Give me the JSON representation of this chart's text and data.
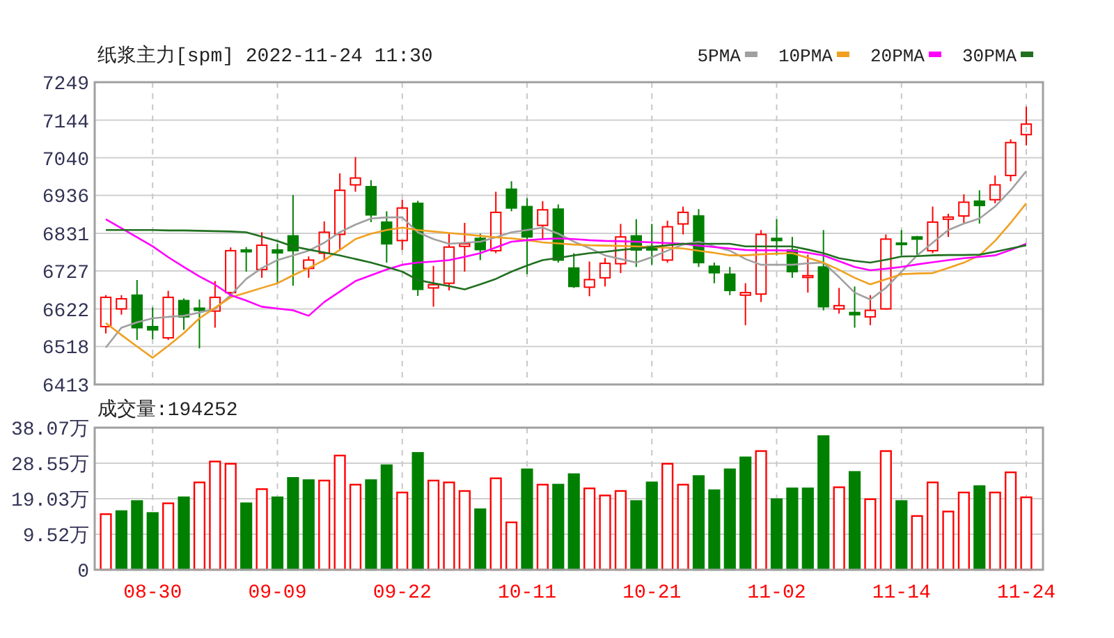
{
  "chart_data": [
    {
      "type": "candlestick",
      "title": "纸浆主力[spm] 2022-11-24 11:30",
      "legend": "top right",
      "grid": true,
      "tick_labels": "y",
      "categories": [
        null,
        null,
        null,
        null,
        null,
        null,
        null,
        null,
        null,
        null,
        null,
        null,
        null,
        null,
        null,
        null,
        null,
        null,
        null,
        null,
        null,
        null,
        null,
        null,
        null,
        null,
        null,
        null,
        null,
        null,
        null,
        null,
        null,
        null,
        null,
        null,
        null,
        null,
        null,
        null,
        null,
        null,
        null,
        null,
        null,
        null,
        null,
        null,
        null,
        null,
        null,
        null,
        null,
        null,
        null,
        null,
        null,
        null,
        null,
        null
      ],
      "ylim": [
        6413,
        7249
      ],
      "yticks": [
        6413,
        6518,
        6622,
        6727,
        6831,
        6936,
        7040,
        7144,
        7249
      ],
      "ohlc": [
        [
          6573,
          6660,
          6554,
          6654
        ],
        [
          6622,
          6660,
          6606,
          6650
        ],
        [
          6660,
          6702,
          6536,
          6570
        ],
        [
          6573,
          6626,
          6538,
          6564
        ],
        [
          6542,
          6672,
          6536,
          6654
        ],
        [
          6645,
          6651,
          6564,
          6600
        ],
        [
          6624,
          6648,
          6513,
          6618
        ],
        [
          6616,
          6699,
          6570,
          6654
        ],
        [
          6667,
          6792,
          6654,
          6783
        ],
        [
          6785,
          6793,
          6725,
          6780
        ],
        [
          6731,
          6834,
          6708,
          6798
        ],
        [
          6785,
          6802,
          6693,
          6777
        ],
        [
          6824,
          6937,
          6686,
          6783
        ],
        [
          6734,
          6767,
          6708,
          6757
        ],
        [
          6776,
          6864,
          6757,
          6834
        ],
        [
          6828,
          6997,
          6785,
          6950
        ],
        [
          6965,
          7042,
          6946,
          6984
        ],
        [
          6960,
          6978,
          6862,
          6882
        ],
        [
          6862,
          6892,
          6750,
          6802
        ],
        [
          6811,
          6924,
          6785,
          6901
        ],
        [
          6914,
          6921,
          6658,
          6676
        ],
        [
          6680,
          6741,
          6628,
          6689
        ],
        [
          6693,
          6830,
          6673,
          6793
        ],
        [
          6795,
          6860,
          6725,
          6802
        ],
        [
          6817,
          6830,
          6757,
          6786
        ],
        [
          6783,
          6946,
          6776,
          6889
        ],
        [
          6953,
          6975,
          6892,
          6901
        ],
        [
          6905,
          6928,
          6718,
          6821
        ],
        [
          6853,
          6920,
          6815,
          6896
        ],
        [
          6898,
          6911,
          6750,
          6757
        ],
        [
          6735,
          6776,
          6680,
          6684
        ],
        [
          6682,
          6753,
          6657,
          6703
        ],
        [
          6708,
          6763,
          6684,
          6748
        ],
        [
          6747,
          6857,
          6721,
          6821
        ],
        [
          6824,
          6870,
          6738,
          6785
        ],
        [
          6795,
          6857,
          6744,
          6785
        ],
        [
          6757,
          6866,
          6750,
          6849
        ],
        [
          6857,
          6905,
          6828,
          6889
        ],
        [
          6879,
          6898,
          6738,
          6750
        ],
        [
          6740,
          6750,
          6693,
          6722
        ],
        [
          6718,
          6738,
          6660,
          6673
        ],
        [
          6660,
          6693,
          6577,
          6667
        ],
        [
          6663,
          6840,
          6641,
          6828
        ],
        [
          6817,
          6870,
          6770,
          6811
        ],
        [
          6785,
          6821,
          6708,
          6725
        ],
        [
          6709,
          6772,
          6667,
          6714
        ],
        [
          6738,
          6840,
          6618,
          6628
        ],
        [
          6622,
          6680,
          6609,
          6631
        ],
        [
          6612,
          6684,
          6570,
          6606
        ],
        [
          6600,
          6660,
          6577,
          6618
        ],
        [
          6622,
          6828,
          6620,
          6815
        ],
        [
          6804,
          6840,
          6770,
          6800
        ],
        [
          6821,
          6824,
          6772,
          6815
        ],
        [
          6783,
          6905,
          6776,
          6862
        ],
        [
          6870,
          6885,
          6821,
          6876
        ],
        [
          6879,
          6939,
          6860,
          6917
        ],
        [
          6920,
          6950,
          6858,
          6908
        ],
        [
          6924,
          6991,
          6914,
          6965
        ],
        [
          6991,
          7091,
          6975,
          7082
        ],
        [
          7104,
          7181,
          7074,
          7133
        ]
      ],
      "colors": [
        "#ff0000",
        "#ff0000",
        "#008000",
        "#008000",
        "#ff0000",
        "#008000",
        "#008000",
        "#ff0000",
        "#ff0000",
        "#008000",
        "#ff0000",
        "#008000",
        "#008000",
        "#ff0000",
        "#ff0000",
        "#ff0000",
        "#ff0000",
        "#008000",
        "#008000",
        "#ff0000",
        "#008000",
        "#ff0000",
        "#ff0000",
        "#ff0000",
        "#008000",
        "#ff0000",
        "#008000",
        "#008000",
        "#ff0000",
        "#008000",
        "#008000",
        "#ff0000",
        "#ff0000",
        "#ff0000",
        "#008000",
        "#008000",
        "#ff0000",
        "#ff0000",
        "#008000",
        "#008000",
        "#008000",
        "#ff0000",
        "#ff0000",
        "#008000",
        "#008000",
        "#ff0000",
        "#008000",
        "#ff0000",
        "#008000",
        "#ff0000",
        "#ff0000",
        "#008000",
        "#008000",
        "#ff0000",
        "#ff0000",
        "#ff0000",
        "#008000",
        "#ff0000",
        "#ff0000",
        "#ff0000"
      ],
      "series": [
        {
          "name": "5PMA",
          "type": "line",
          "color": "#a0a0a0",
          "values": [
            6515,
            6570,
            6585,
            6596,
            6600,
            6603,
            6612,
            6622,
            6660,
            6705,
            6735,
            6757,
            6770,
            6783,
            6805,
            6834,
            6855,
            6872,
            6875,
            6875,
            6834,
            6815,
            6802,
            6805,
            6808,
            6820,
            6834,
            6840,
            6847,
            6830,
            6808,
            6790,
            6770,
            6760,
            6750,
            6765,
            6783,
            6800,
            6808,
            6795,
            6783,
            6760,
            6744,
            6744,
            6744,
            6748,
            6750,
            6710,
            6667,
            6648,
            6680,
            6725,
            6770,
            6805,
            6840,
            6858,
            6872,
            6905,
            6950,
            7003
          ]
        },
        {
          "name": "10PMA",
          "type": "line",
          "color": "#f0a020",
          "values": [
            6583,
            6550,
            6518,
            6487,
            6520,
            6555,
            6596,
            6625,
            6654,
            6667,
            6680,
            6693,
            6715,
            6735,
            6757,
            6785,
            6815,
            6830,
            6840,
            6847,
            6840,
            6836,
            6832,
            6828,
            6824,
            6820,
            6817,
            6812,
            6806,
            6803,
            6800,
            6798,
            6797,
            6796,
            6795,
            6793,
            6791,
            6789,
            6783,
            6777,
            6770,
            6770,
            6773,
            6775,
            6776,
            6763,
            6750,
            6730,
            6708,
            6690,
            6704,
            6718,
            6720,
            6721,
            6735,
            6750,
            6770,
            6810,
            6860,
            6914
          ]
        },
        {
          "name": "20PMA",
          "type": "line",
          "color": "#ff00ff",
          "values": [
            6870,
            6845,
            6820,
            6795,
            6765,
            6738,
            6712,
            6689,
            6660,
            6645,
            6628,
            6623,
            6618,
            6603,
            6641,
            6670,
            6699,
            6715,
            6731,
            6744,
            6750,
            6753,
            6757,
            6766,
            6776,
            6792,
            6808,
            6812,
            6815,
            6817,
            6815,
            6812,
            6810,
            6809,
            6808,
            6806,
            6804,
            6802,
            6797,
            6793,
            6789,
            6785,
            6784,
            6784,
            6783,
            6777,
            6770,
            6754,
            6738,
            6729,
            6733,
            6738,
            6745,
            6751,
            6757,
            6762,
            6766,
            6770,
            6785,
            6802
          ]
        },
        {
          "name": "30PMA",
          "type": "line",
          "color": "#207020",
          "values": [
            6840,
            6840,
            6840,
            6840,
            6839,
            6839,
            6838,
            6837,
            6836,
            6834,
            6822,
            6810,
            6795,
            6786,
            6778,
            6770,
            6760,
            6750,
            6738,
            6725,
            6702,
            6693,
            6685,
            6676,
            6690,
            6705,
            6725,
            6742,
            6757,
            6763,
            6770,
            6776,
            6780,
            6785,
            6789,
            6793,
            6798,
            6802,
            6802,
            6802,
            6802,
            6795,
            6795,
            6795,
            6795,
            6786,
            6776,
            6762,
            6755,
            6750,
            6758,
            6767,
            6768,
            6770,
            6771,
            6771,
            6772,
            6780,
            6789,
            6798
          ]
        }
      ]
    },
    {
      "type": "bar",
      "title": "成交量:194252",
      "grid": true,
      "categories": [
        null,
        null,
        null,
        "08-30",
        null,
        null,
        null,
        null,
        null,
        null,
        null,
        "09-09",
        null,
        null,
        null,
        null,
        null,
        null,
        null,
        "09-22",
        null,
        null,
        null,
        null,
        null,
        null,
        null,
        "10-11",
        null,
        null,
        null,
        null,
        null,
        null,
        null,
        "10-21",
        null,
        null,
        null,
        null,
        null,
        null,
        null,
        "11-02",
        null,
        null,
        null,
        null,
        null,
        null,
        null,
        "11-14",
        null,
        null,
        null,
        null,
        null,
        null,
        null,
        "11-24"
      ],
      "ylim": [
        0,
        38.07
      ],
      "yticks": [
        0,
        {
          "value": 9.52,
          "label": "9.52万"
        },
        {
          "value": 19.03,
          "label": "19.03万"
        },
        {
          "value": 28.55,
          "label": "28.55万"
        },
        {
          "value": 38.07,
          "label": "38.07万"
        }
      ],
      "values": [
        14.9,
        15.7,
        18.4,
        15.2,
        17.8,
        19.4,
        23.4,
        29.0,
        28.4,
        17.8,
        21.6,
        19.4,
        24.6,
        24.0,
        23.9,
        30.6,
        22.8,
        24.0,
        28.0,
        20.7,
        31.3,
        23.9,
        23.4,
        21.1,
        16.2,
        24.5,
        12.7,
        26.9,
        22.8,
        22.8,
        25.6,
        21.8,
        19.9,
        21.1,
        18.4,
        23.4,
        28.4,
        22.8,
        25.1,
        21.3,
        26.9,
        30.1,
        31.8,
        18.9,
        21.8,
        21.8,
        35.8,
        22.1,
        26.2,
        18.9,
        31.8,
        18.4,
        14.4,
        23.4,
        15.6,
        20.7,
        22.4,
        20.7,
        26.1,
        19.4
      ],
      "colors": [
        "#ff0000",
        "#008000",
        "#008000",
        "#008000",
        "#ff0000",
        "#008000",
        "#ff0000",
        "#ff0000",
        "#ff0000",
        "#008000",
        "#ff0000",
        "#008000",
        "#008000",
        "#008000",
        "#ff0000",
        "#ff0000",
        "#ff0000",
        "#008000",
        "#008000",
        "#ff0000",
        "#008000",
        "#ff0000",
        "#ff0000",
        "#ff0000",
        "#008000",
        "#ff0000",
        "#ff0000",
        "#008000",
        "#ff0000",
        "#008000",
        "#008000",
        "#ff0000",
        "#ff0000",
        "#ff0000",
        "#008000",
        "#008000",
        "#ff0000",
        "#ff0000",
        "#008000",
        "#008000",
        "#008000",
        "#008000",
        "#ff0000",
        "#008000",
        "#008000",
        "#008000",
        "#008000",
        "#ff0000",
        "#008000",
        "#ff0000",
        "#ff0000",
        "#008000",
        "#ff0000",
        "#ff0000",
        "#ff0000",
        "#ff0000",
        "#008000",
        "#ff0000",
        "#ff0000",
        "#ff0000"
      ]
    }
  ]
}
